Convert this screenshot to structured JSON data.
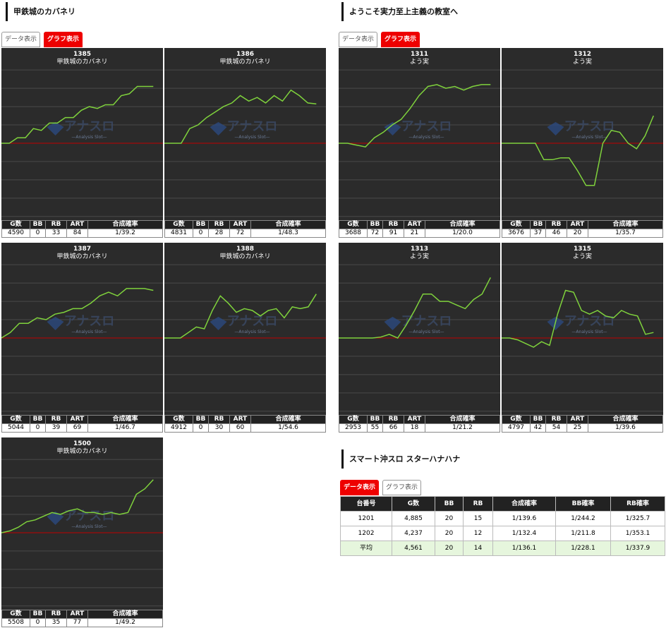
{
  "sections": [
    {
      "title": "甲鉄城のカバネリ",
      "tabs": [
        "データ表示",
        "グラフ表示"
      ],
      "active_tab": 1,
      "machines": [
        {
          "number": "1385",
          "name": "甲鉄城のカバネリ",
          "stats": [
            "4590",
            "0",
            "33",
            "84",
            "1/39.2"
          ],
          "graph": [
            0,
            0,
            0.3,
            0.3,
            0.8,
            0.7,
            1.1,
            1.1,
            1.4,
            1.4,
            1.8,
            2.0,
            1.9,
            2.1,
            2.1,
            2.6,
            2.7,
            3.1,
            3.1,
            3.1
          ]
        },
        {
          "number": "1386",
          "name": "甲鉄城のカバネリ",
          "stats": [
            "4831",
            "0",
            "28",
            "72",
            "1/48.3"
          ],
          "graph": [
            0,
            0,
            0,
            0.8,
            1.0,
            1.4,
            1.7,
            2.0,
            2.2,
            2.6,
            2.3,
            2.5,
            2.2,
            2.6,
            2.3,
            2.9,
            2.6,
            2.2,
            2.15
          ]
        },
        {
          "number": "1387",
          "name": "甲鉄城のカバネリ",
          "stats": [
            "5044",
            "0",
            "39",
            "69",
            "1/46.7"
          ],
          "graph": [
            0,
            0.3,
            0.8,
            0.8,
            1.1,
            1.0,
            1.3,
            1.4,
            1.6,
            1.6,
            1.9,
            2.3,
            2.5,
            2.3,
            2.7,
            2.7,
            2.7,
            2.6
          ]
        },
        {
          "number": "1388",
          "name": "甲鉄城のカバネリ",
          "stats": [
            "4912",
            "0",
            "30",
            "60",
            "1/54.6"
          ],
          "graph": [
            0,
            0,
            0,
            0.3,
            0.6,
            0.5,
            1.5,
            2.3,
            1.9,
            1.4,
            1.6,
            1.5,
            1.2,
            1.5,
            1.6,
            1.1,
            1.7,
            1.6,
            1.7,
            2.4
          ]
        },
        {
          "number": "1500",
          "name": "甲鉄城のカバネリ",
          "stats": [
            "5508",
            "0",
            "35",
            "77",
            "1/49.2"
          ],
          "graph": [
            0,
            0.1,
            0.3,
            0.6,
            0.7,
            0.9,
            1.1,
            1.0,
            1.2,
            1.3,
            1.1,
            1.1,
            1.0,
            1.1,
            1.0,
            1.1,
            2.1,
            2.4,
            2.9
          ]
        }
      ]
    },
    {
      "title": "ようこそ実力至上主義の教室へ",
      "tabs": [
        "データ表示",
        "グラフ表示"
      ],
      "active_tab": 1,
      "machines": [
        {
          "number": "1311",
          "name": "よう実",
          "stats": [
            "3688",
            "72",
            "91",
            "21",
            "1/20.0"
          ],
          "graph": [
            0,
            0,
            -0.1,
            -0.2,
            0.3,
            0.6,
            1.0,
            1.3,
            1.9,
            2.6,
            3.1,
            3.2,
            3.0,
            3.1,
            2.9,
            3.1,
            3.2,
            3.2
          ]
        },
        {
          "number": "1312",
          "name": "よう実",
          "stats": [
            "3676",
            "37",
            "46",
            "20",
            "1/35.7"
          ],
          "graph": [
            0,
            0,
            0,
            0,
            0,
            -0.9,
            -0.9,
            -0.8,
            -0.8,
            -1.5,
            -2.3,
            -2.3,
            0.0,
            0.7,
            0.6,
            0,
            -0.3,
            0.4,
            1.5
          ]
        },
        {
          "number": "1313",
          "name": "よう実",
          "stats": [
            "2953",
            "55",
            "66",
            "18",
            "1/21.2"
          ],
          "graph": [
            0,
            0,
            0,
            0,
            0,
            0.05,
            0.2,
            0.0,
            0.7,
            1.5,
            2.4,
            2.4,
            2.0,
            2.0,
            1.8,
            1.6,
            2.1,
            2.4,
            3.3
          ]
        },
        {
          "number": "1315",
          "name": "よう実",
          "stats": [
            "4797",
            "42",
            "54",
            "25",
            "1/39.6"
          ],
          "graph": [
            0,
            0,
            -0.1,
            -0.3,
            -0.5,
            -0.2,
            -0.4,
            1.3,
            2.6,
            2.5,
            1.5,
            1.3,
            1.5,
            1.2,
            1.1,
            1.5,
            1.3,
            1.2,
            0.2,
            0.3
          ]
        }
      ]
    },
    {
      "title": "スマート沖スロ スターハナハナ",
      "tabs": [
        "データ表示",
        "グラフ表示"
      ],
      "active_tab": 0,
      "table": {
        "headers": [
          "台番号",
          "G数",
          "BB",
          "RB",
          "合成確率",
          "BB確率",
          "RB確率"
        ],
        "rows": [
          [
            "1201",
            "4,885",
            "20",
            "15",
            "1/139.6",
            "1/244.2",
            "1/325.7"
          ],
          [
            "1202",
            "4,237",
            "20",
            "12",
            "1/132.4",
            "1/211.8",
            "1/353.1"
          ],
          [
            "平均",
            "4,561",
            "20",
            "14",
            "1/136.1",
            "1/228.1",
            "1/337.9"
          ]
        ]
      }
    }
  ],
  "stat_headers": [
    "G数",
    "BB",
    "RB",
    "ART",
    "合成確率"
  ],
  "watermark": {
    "title": "アナスロ",
    "subtitle": "—Analysis Slot—"
  },
  "graph_ylim": [
    -4.2,
    5.2
  ],
  "graph_grid": [
    -4,
    -3,
    -2,
    -1,
    0,
    1,
    2,
    3,
    4
  ]
}
